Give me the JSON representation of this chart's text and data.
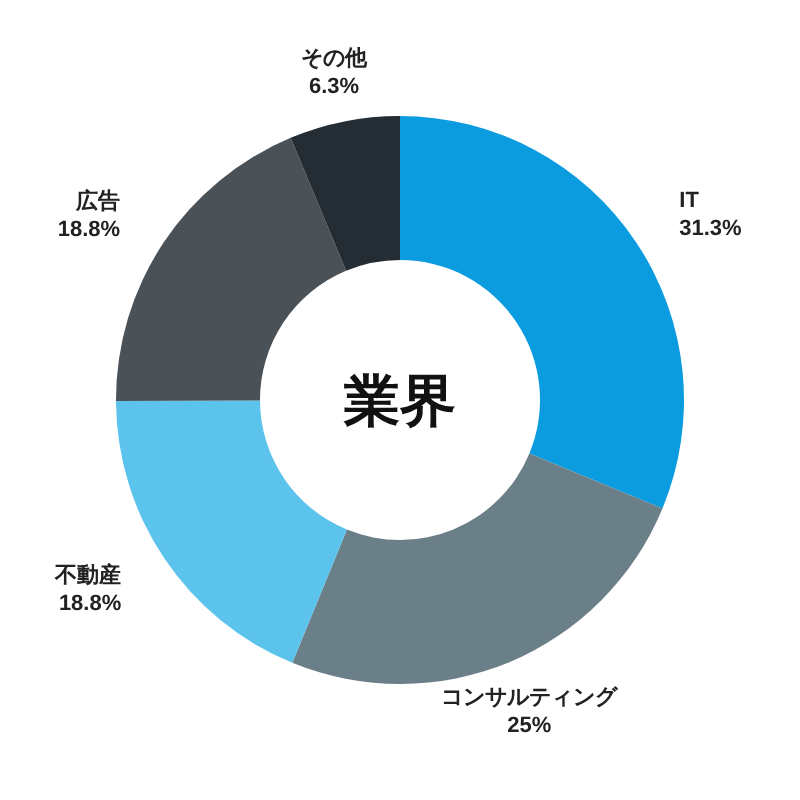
{
  "chart_data": {
    "type": "donut",
    "title": "業界",
    "categories": [
      "IT",
      "コンサルティング",
      "不動産",
      "広告",
      "その他"
    ],
    "values": [
      31.3,
      25,
      18.8,
      18.8,
      6.3
    ],
    "value_labels": [
      "31.3%",
      "25%",
      "18.8%",
      "18.8%",
      "6.3%"
    ],
    "colors": [
      "#0b9ce0",
      "#6b7f89",
      "#5bc3ec",
      "#4a5157",
      "#232d33"
    ]
  }
}
